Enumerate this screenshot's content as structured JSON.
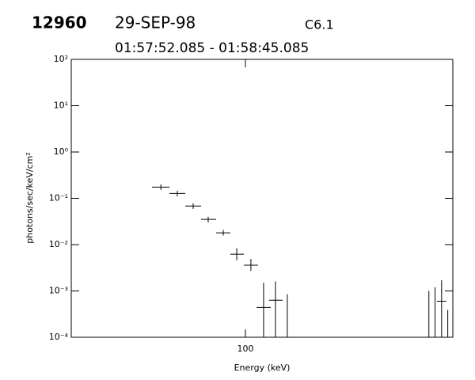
{
  "chart_data": {
    "type": "errorbar",
    "header": {
      "id": "12960",
      "date": "29-SEP-98",
      "class": "C6.1",
      "time_range": "01:57:52.085 - 01:58:45.085"
    },
    "xlabel": "Energy (keV)",
    "ylabel": "photons/sec/keV/cm²",
    "xscale": "log",
    "yscale": "log",
    "color": "#000000",
    "xlim": [
      20,
      680
    ],
    "ylim": [
      0.0001,
      100
    ],
    "xticks": [
      100
    ],
    "yticks": [
      {
        "value": 0.0001,
        "label": "10⁻⁴"
      },
      {
        "value": 0.001,
        "label": "10⁻³"
      },
      {
        "value": 0.01,
        "label": "10⁻²"
      },
      {
        "value": 0.1,
        "label": "10⁻¹"
      },
      {
        "value": 1,
        "label": "10⁰"
      },
      {
        "value": 10,
        "label": "10¹"
      },
      {
        "value": 100,
        "label": "10²"
      }
    ],
    "x": [
      45.8,
      53.3,
      61.7,
      70.9,
      81.5,
      92.3,
      105.2,
      118.3,
      132.0,
      147.3,
      545,
      577,
      613,
      649
    ],
    "x_low": [
      42.2,
      49.6,
      57.4,
      66.4,
      76.3,
      87.0,
      98.6,
      110.8,
      124.5,
      null,
      null,
      null,
      587,
      null
    ],
    "x_high": [
      49.6,
      57.4,
      66.4,
      76.3,
      87.0,
      98.6,
      112.4,
      126.4,
      141,
      null,
      null,
      null,
      640,
      null
    ],
    "values": [
      0.174,
      0.127,
      0.068,
      0.035,
      0.018,
      0.0062,
      0.0036,
      0.00044,
      0.00063,
      null,
      null,
      null,
      0.0006,
      null
    ],
    "y_low": [
      0.151,
      0.11,
      0.059,
      0.03,
      0.0157,
      0.0046,
      0.0027,
      1e-05,
      1e-05,
      1e-05,
      1e-05,
      1e-05,
      1e-05,
      1e-05
    ],
    "y_high": [
      0.2,
      0.146,
      0.078,
      0.04,
      0.0207,
      0.0084,
      0.0049,
      0.0015,
      0.0016,
      0.00085,
      0.001,
      0.0012,
      0.0017,
      0.00039
    ]
  }
}
